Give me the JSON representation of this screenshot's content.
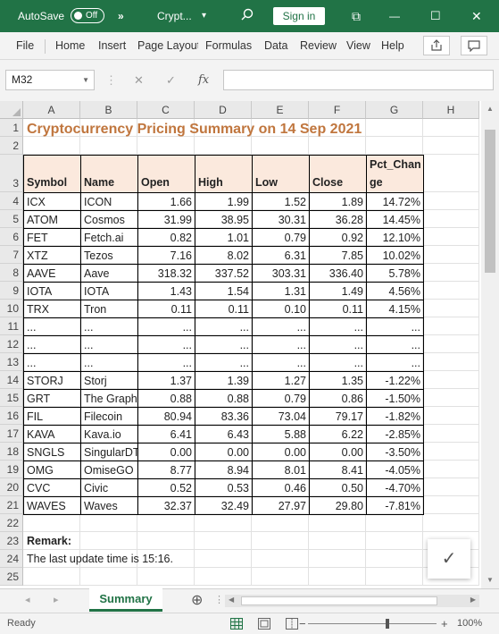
{
  "app": {
    "autosave_label": "AutoSave",
    "autosave_state": "Off",
    "more_label": "»",
    "doc_title": "Crypt...",
    "title_dropdown": "▾",
    "search_icon": "search-icon",
    "signin_label": "Sign in",
    "restore_glyph": "⧉",
    "minimize_glyph": "—",
    "maximize_glyph": "☐",
    "close_glyph": "✕",
    "brand_color": "#217346"
  },
  "ribbon": {
    "tabs": [
      "File",
      "Home",
      "Insert",
      "Page Layout",
      "Formulas",
      "Data",
      "Review",
      "View",
      "Help"
    ],
    "share_icon": "share-icon",
    "comments_icon": "comments-icon"
  },
  "formula_bar": {
    "name_box": "M32",
    "cancel_glyph": "✕",
    "enter_glyph": "✓",
    "fx_label": "fx",
    "formula": ""
  },
  "columns": [
    "A",
    "B",
    "C",
    "D",
    "E",
    "F",
    "G",
    "H"
  ],
  "rows": [
    "1",
    "2",
    "3",
    "4",
    "5",
    "6",
    "7",
    "8",
    "9",
    "10",
    "11",
    "12",
    "13",
    "14",
    "15",
    "16",
    "17",
    "18",
    "19",
    "20",
    "21",
    "22",
    "23",
    "24",
    "25"
  ],
  "sheet": {
    "title": "Cryptocurrency Pricing Summary on 14 Sep 2021",
    "title_color": "#c0763e",
    "header_fill": "#fbe9dd",
    "headers": [
      "Symbol",
      "Name",
      "Open",
      "High",
      "Low",
      "Close",
      "Pct_Chan\nge"
    ],
    "data": [
      [
        "ICX",
        "ICON",
        "1.66",
        "1.99",
        "1.52",
        "1.89",
        "14.72%"
      ],
      [
        "ATOM",
        "Cosmos",
        "31.99",
        "38.95",
        "30.31",
        "36.28",
        "14.45%"
      ],
      [
        "FET",
        "Fetch.ai",
        "0.82",
        "1.01",
        "0.79",
        "0.92",
        "12.10%"
      ],
      [
        "XTZ",
        "Tezos",
        "7.16",
        "8.02",
        "6.31",
        "7.85",
        "10.02%"
      ],
      [
        "AAVE",
        "Aave",
        "318.32",
        "337.52",
        "303.31",
        "336.40",
        "5.78%"
      ],
      [
        "IOTA",
        "IOTA",
        "1.43",
        "1.54",
        "1.31",
        "1.49",
        "4.56%"
      ],
      [
        "TRX",
        "Tron",
        "0.11",
        "0.11",
        "0.10",
        "0.11",
        "4.15%"
      ],
      [
        "...",
        "...",
        "...",
        "...",
        "...",
        "...",
        "..."
      ],
      [
        "...",
        "...",
        "...",
        "...",
        "...",
        "...",
        "..."
      ],
      [
        "...",
        "...",
        "...",
        "...",
        "...",
        "...",
        "..."
      ],
      [
        "STORJ",
        "Storj",
        "1.37",
        "1.39",
        "1.27",
        "1.35",
        "-1.22%"
      ],
      [
        "GRT",
        "The Graph",
        "0.88",
        "0.88",
        "0.79",
        "0.86",
        "-1.50%"
      ],
      [
        "FIL",
        "Filecoin",
        "80.94",
        "83.36",
        "73.04",
        "79.17",
        "-1.82%"
      ],
      [
        "KAVA",
        "Kava.io",
        "6.41",
        "6.43",
        "5.88",
        "6.22",
        "-2.85%"
      ],
      [
        "SNGLS",
        "SingularDT",
        "0.00",
        "0.00",
        "0.00",
        "0.00",
        "-3.50%"
      ],
      [
        "OMG",
        "OmiseGO",
        "8.77",
        "8.94",
        "8.01",
        "8.41",
        "-4.05%"
      ],
      [
        "CVC",
        "Civic",
        "0.52",
        "0.53",
        "0.46",
        "0.50",
        "-4.70%"
      ],
      [
        "WAVES",
        "Waves",
        "32.37",
        "32.49",
        "27.97",
        "29.80",
        "-7.81%"
      ]
    ],
    "remark_label": "Remark:",
    "remark_text": "The last update time is 15:16."
  },
  "sheet_tabs": {
    "active": "Summary",
    "add_glyph": "⊕",
    "prev_glyph": "◂",
    "next_glyph": "▸"
  },
  "check_glyph": "✓",
  "statusbar": {
    "ready": "Ready",
    "zoom_minus": "−",
    "zoom_plus": "+",
    "zoom": "100%",
    "zoom_level_fraction": 0.62
  }
}
